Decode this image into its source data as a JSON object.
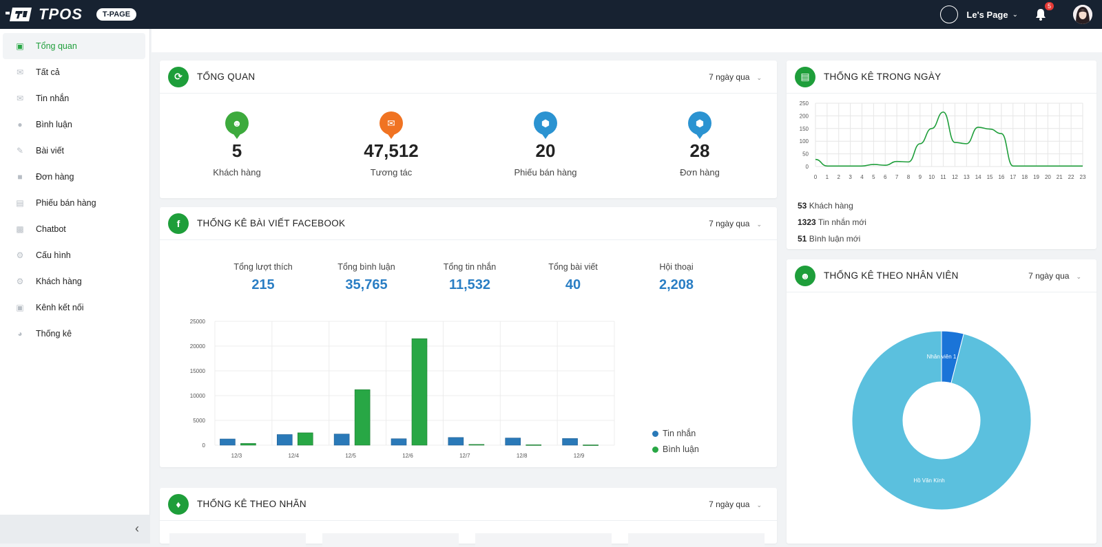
{
  "app": {
    "brand": "TPOS",
    "badge": "T-PAGE"
  },
  "topbar": {
    "page_name": "Le's Page",
    "notifications": "5"
  },
  "sidebar": {
    "items": [
      {
        "label": "Tổng quan",
        "icon": "dashboard-icon",
        "active": true
      },
      {
        "label": "Tất cả",
        "icon": "inbox-icon"
      },
      {
        "label": "Tin nhắn",
        "icon": "mail-icon"
      },
      {
        "label": "Bình luận",
        "icon": "comment-icon"
      },
      {
        "label": "Bài viết",
        "icon": "edit-icon"
      },
      {
        "label": "Đơn hàng",
        "icon": "order-icon"
      },
      {
        "label": "Phiếu bán hàng",
        "icon": "receipt-icon"
      },
      {
        "label": "Chatbot",
        "icon": "robot-icon"
      },
      {
        "label": "Cấu hình",
        "icon": "gear-icon"
      },
      {
        "label": "Khách hàng",
        "icon": "gear-icon"
      },
      {
        "label": "Kênh kết nối",
        "icon": "facebook-icon"
      },
      {
        "label": "Thống kê",
        "icon": "pie-icon"
      }
    ]
  },
  "overview": {
    "title": "TỔNG QUAN",
    "period": "7 ngày qua",
    "stats": [
      {
        "value": "5",
        "label": "Khách hàng",
        "color": "#3daa3d",
        "icon": "user-icon"
      },
      {
        "value": "47,512",
        "label": "Tương tác",
        "color": "#f07322",
        "icon": "mail-icon"
      },
      {
        "value": "20",
        "label": "Phiếu bán hàng",
        "color": "#2b93d1",
        "icon": "box-icon"
      },
      {
        "value": "28",
        "label": "Đơn hàng",
        "color": "#2b93d1",
        "icon": "box-icon"
      }
    ]
  },
  "facebook": {
    "title": "THỐNG KÊ BÀI VIẾT FACEBOOK",
    "period": "7 ngày qua",
    "stats": [
      {
        "label": "Tổng lượt thích",
        "value": "215"
      },
      {
        "label": "Tổng bình luận",
        "value": "35,765"
      },
      {
        "label": "Tổng tin nhắn",
        "value": "11,532"
      },
      {
        "label": "Tổng bài viết",
        "value": "40"
      },
      {
        "label": "Hội thoại",
        "value": "2,208"
      }
    ]
  },
  "labels_card": {
    "title": "THỐNG KÊ THEO NHÃN",
    "period": "7 ngày qua"
  },
  "daily": {
    "title": "THỐNG KÊ TRONG NGÀY",
    "lines": [
      {
        "value": "53",
        "label": "Khách hàng"
      },
      {
        "value": "1323",
        "label": "Tin nhắn mới"
      },
      {
        "value": "51",
        "label": "Bình luận mới"
      }
    ]
  },
  "staff": {
    "title": "THỐNG KÊ THEO NHÂN VIÊN",
    "period": "7 ngày qua"
  },
  "chart_data": [
    {
      "type": "bar",
      "categories": [
        "12/3",
        "12/4",
        "12/5",
        "12/6",
        "12/7",
        "12/8",
        "12/9"
      ],
      "series": [
        {
          "name": "Tin nhắn",
          "color": "#2a79b8",
          "values": [
            1250,
            2150,
            2250,
            1300,
            1550,
            1450,
            1350
          ]
        },
        {
          "name": "Bình luận",
          "color": "#28a745",
          "values": [
            350,
            2500,
            11200,
            21500,
            150,
            80,
            60
          ]
        }
      ],
      "ylim": [
        0,
        25000
      ],
      "yticks": [
        0,
        5000,
        10000,
        15000,
        20000,
        25000
      ],
      "legend": "right"
    },
    {
      "type": "line",
      "x": [
        0,
        1,
        2,
        3,
        4,
        5,
        6,
        7,
        8,
        9,
        10,
        11,
        12,
        13,
        14,
        15,
        16,
        17,
        18,
        19,
        20,
        21,
        22,
        23
      ],
      "values": [
        28,
        2,
        2,
        2,
        2,
        8,
        5,
        20,
        18,
        90,
        150,
        215,
        95,
        90,
        155,
        148,
        130,
        2,
        2,
        2,
        2,
        2,
        2,
        2
      ],
      "ylim": [
        0,
        250
      ],
      "yticks": [
        0,
        50,
        100,
        150,
        200,
        250
      ],
      "color": "#1e9e3a",
      "grid": true
    },
    {
      "type": "pie",
      "slices": [
        {
          "label": "Nhân viên 1",
          "value": 4,
          "color": "#1a74d8"
        },
        {
          "label": "Hồ Văn Kính",
          "value": 96,
          "color": "#5bc0de"
        }
      ]
    }
  ]
}
